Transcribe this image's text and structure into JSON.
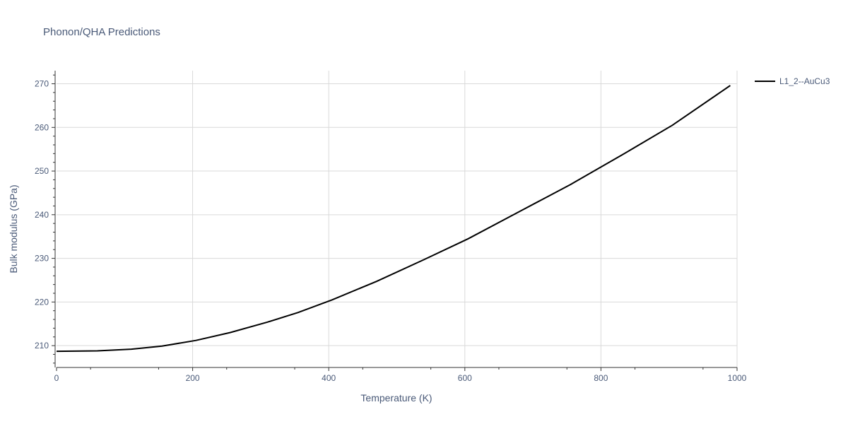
{
  "chart_data": {
    "type": "line",
    "title": "Phonon/QHA Predictions",
    "xlabel": "Temperature (K)",
    "ylabel": "Bulk modulus (GPa)",
    "xlim": [
      0,
      1000
    ],
    "ylim": [
      205,
      273
    ],
    "xticks": [
      0,
      200,
      400,
      600,
      800,
      1000
    ],
    "yticks": [
      210,
      220,
      230,
      240,
      250,
      260,
      270
    ],
    "xtick_labels": [
      "0",
      "200",
      "400",
      "600",
      "800",
      "1000"
    ],
    "ytick_labels": [
      "210",
      "220",
      "230",
      "240",
      "250",
      "260",
      "270"
    ],
    "grid": true,
    "legend_position": "top-right",
    "series": [
      {
        "name": "L1_2--AuCu3",
        "color": "#000000",
        "x": [
          0,
          60,
          110,
          155,
          205,
          255,
          310,
          355,
          405,
          470,
          540,
          605,
          680,
          755,
          830,
          905,
          990
        ],
        "y": [
          208.7,
          208.8,
          209.2,
          209.9,
          211.2,
          213.0,
          215.4,
          217.6,
          220.5,
          224.7,
          229.7,
          234.5,
          240.7,
          246.9,
          253.6,
          260.5,
          269.6
        ]
      }
    ]
  }
}
